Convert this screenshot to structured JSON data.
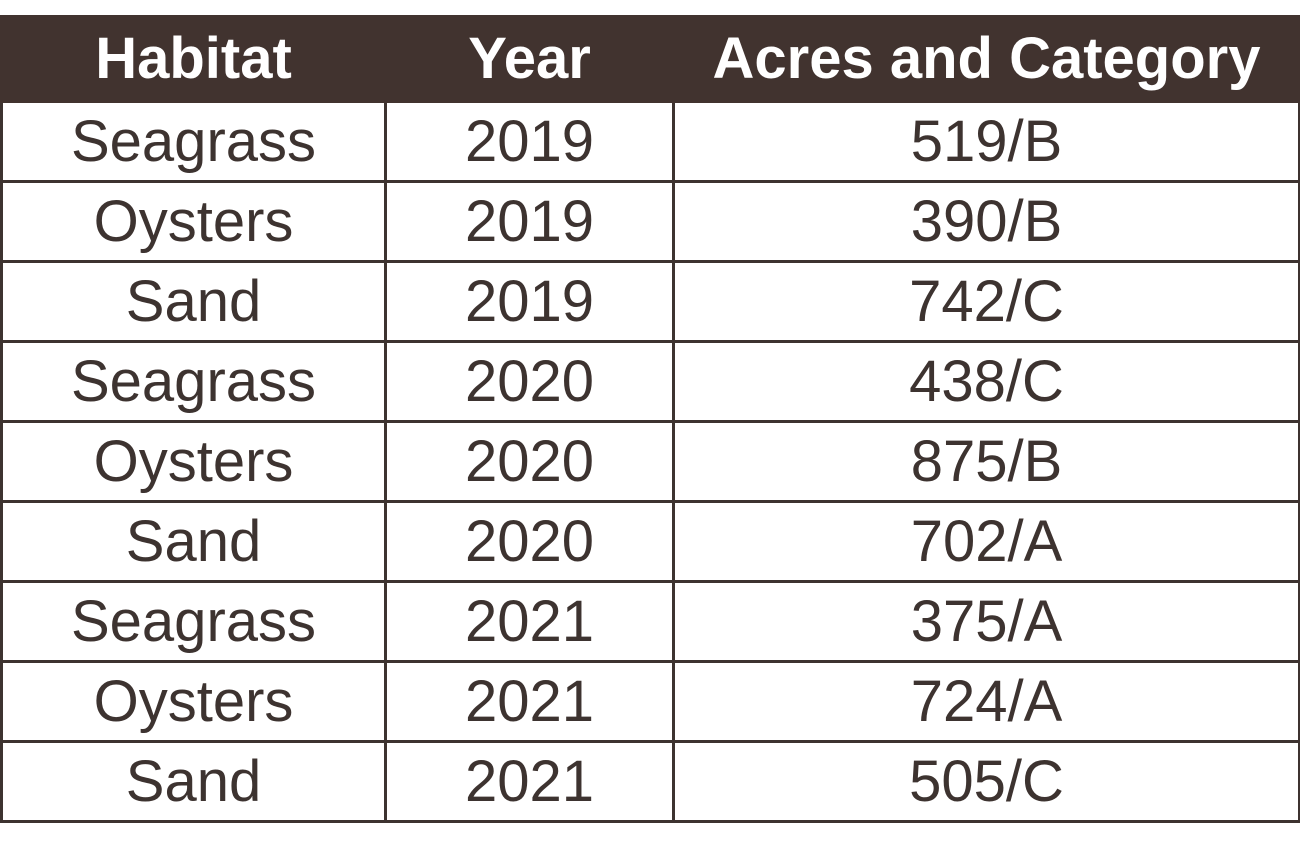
{
  "table": {
    "headers": [
      "Habitat",
      "Year",
      "Acres and Category"
    ],
    "rows": [
      [
        "Seagrass",
        "2019",
        "519/B"
      ],
      [
        "Oysters",
        "2019",
        "390/B"
      ],
      [
        "Sand",
        "2019",
        "742/C"
      ],
      [
        "Seagrass",
        "2020",
        "438/C"
      ],
      [
        "Oysters",
        "2020",
        "875/B"
      ],
      [
        "Sand",
        "2020",
        "702/A"
      ],
      [
        "Seagrass",
        "2021",
        "375/A"
      ],
      [
        "Oysters",
        "2021",
        "724/A"
      ],
      [
        "Sand",
        "2021",
        "505/C"
      ]
    ]
  },
  "colors": {
    "header_background": "#41332f",
    "header_text": "#ffffff",
    "body_text": "#3d3330",
    "border": "#3d3330"
  }
}
